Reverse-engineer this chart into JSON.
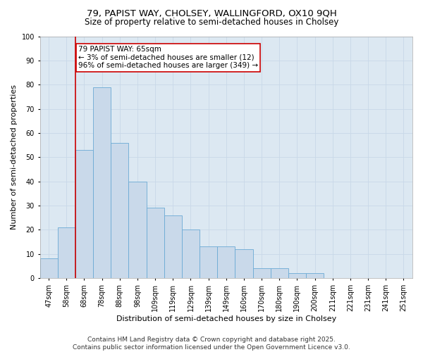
{
  "title_line1": "79, PAPIST WAY, CHOLSEY, WALLINGFORD, OX10 9QH",
  "title_line2": "Size of property relative to semi-detached houses in Cholsey",
  "xlabel": "Distribution of semi-detached houses by size in Cholsey",
  "ylabel": "Number of semi-detached properties",
  "categories": [
    "47sqm",
    "58sqm",
    "68sqm",
    "78sqm",
    "88sqm",
    "98sqm",
    "109sqm",
    "119sqm",
    "129sqm",
    "139sqm",
    "149sqm",
    "160sqm",
    "170sqm",
    "180sqm",
    "190sqm",
    "200sqm",
    "211sqm",
    "221sqm",
    "231sqm",
    "241sqm",
    "251sqm"
  ],
  "values": [
    8,
    21,
    53,
    79,
    56,
    40,
    29,
    26,
    20,
    13,
    13,
    12,
    4,
    4,
    2,
    2,
    0,
    0,
    0,
    0,
    0
  ],
  "bar_color": "#c9d9ea",
  "bar_edge_color": "#6aaad4",
  "vline_color": "#cc0000",
  "vline_x_index": 1,
  "annotation_text_line1": "79 PAPIST WAY: 65sqm",
  "annotation_text_line2": "← 3% of semi-detached houses are smaller (12)",
  "annotation_text_line3": "96% of semi-detached houses are larger (349) →",
  "annotation_box_color": "#ffffff",
  "annotation_edge_color": "#cc0000",
  "ylim": [
    0,
    100
  ],
  "yticks": [
    0,
    10,
    20,
    30,
    40,
    50,
    60,
    70,
    80,
    90,
    100
  ],
  "grid_color": "#c8d8e8",
  "background_color": "#dce8f2",
  "footer_line1": "Contains HM Land Registry data © Crown copyright and database right 2025.",
  "footer_line2": "Contains public sector information licensed under the Open Government Licence v3.0.",
  "title_fontsize": 9.5,
  "subtitle_fontsize": 8.5,
  "axis_label_fontsize": 8,
  "tick_fontsize": 7,
  "annotation_fontsize": 7.5,
  "footer_fontsize": 6.5
}
